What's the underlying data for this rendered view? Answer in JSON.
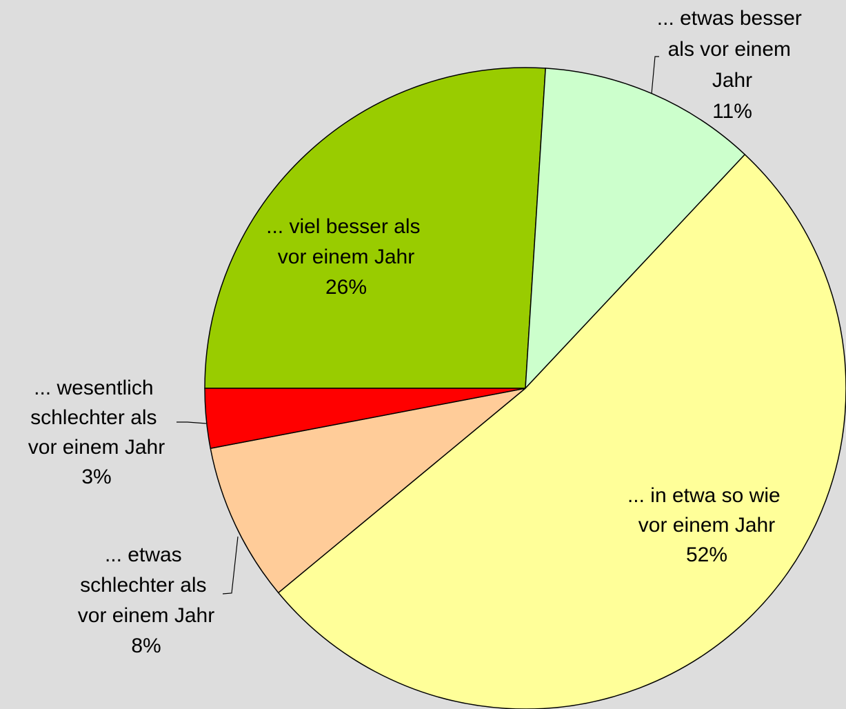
{
  "chart_data": {
    "type": "pie",
    "categories": [
      "... viel besser als vor einem Jahr",
      "... etwas besser als vor einem Jahr",
      "... in etwa so wie vor einem Jahr",
      "... etwas schlechter als vor einem Jahr",
      "... wesentlich schlechter als vor einem Jahr"
    ],
    "values": [
      26,
      11,
      52,
      8,
      3
    ],
    "value_labels": [
      "26%",
      "11%",
      "52%",
      "8%",
      "3%"
    ],
    "colors": [
      "#99cc00",
      "#ccffcc",
      "#ffff99",
      "#ffcc99",
      "#ff0000"
    ]
  }
}
